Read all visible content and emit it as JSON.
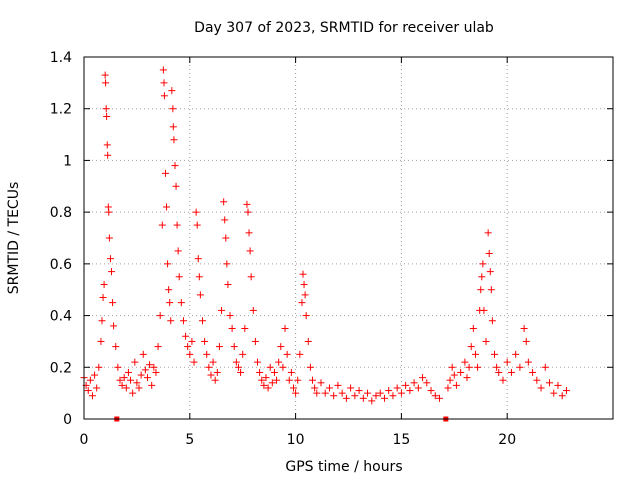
{
  "chart_data": {
    "type": "scatter",
    "title": "Day 307 of 2023, SRMTID for receiver ulab",
    "xlabel": "GPS time / hours",
    "ylabel": "SRMTID / TECUs",
    "xlim": [
      0,
      25
    ],
    "ylim": [
      0,
      1.4
    ],
    "grid": true,
    "marker": "plus",
    "color": "#ff0000",
    "x_ticks": [
      0,
      5,
      10,
      15,
      20
    ],
    "y_ticks": [
      0,
      0.2,
      0.4,
      0.6,
      0.8,
      1,
      1.2,
      1.4
    ],
    "x_tick_labels": [
      "0",
      "5",
      "10",
      "15",
      "20"
    ],
    "y_tick_labels": [
      "0",
      "0.2",
      "0.4",
      "0.6",
      "0.8",
      "1",
      "1.2",
      "1.4"
    ],
    "series": [
      {
        "name": "SRMTID",
        "points": [
          [
            0.0,
            0.16
          ],
          [
            0.1,
            0.13
          ],
          [
            0.2,
            0.11
          ],
          [
            0.3,
            0.15
          ],
          [
            0.4,
            0.09
          ],
          [
            0.5,
            0.17
          ],
          [
            0.6,
            0.12
          ],
          [
            0.7,
            0.2
          ],
          [
            0.8,
            0.3
          ],
          [
            0.85,
            0.38
          ],
          [
            0.9,
            0.47
          ],
          [
            0.95,
            0.52
          ],
          [
            1.0,
            1.33
          ],
          [
            1.02,
            1.3
          ],
          [
            1.05,
            1.2
          ],
          [
            1.07,
            1.17
          ],
          [
            1.1,
            1.06
          ],
          [
            1.12,
            1.02
          ],
          [
            1.15,
            0.82
          ],
          [
            1.17,
            0.8
          ],
          [
            1.2,
            0.7
          ],
          [
            1.25,
            0.62
          ],
          [
            1.3,
            0.57
          ],
          [
            1.35,
            0.45
          ],
          [
            1.4,
            0.36
          ],
          [
            1.5,
            0.28
          ],
          [
            1.6,
            0.2
          ],
          [
            1.7,
            0.15
          ],
          [
            1.8,
            0.13
          ],
          [
            1.9,
            0.16
          ],
          [
            2.0,
            0.12
          ],
          [
            2.1,
            0.18
          ],
          [
            2.2,
            0.15
          ],
          [
            2.3,
            0.1
          ],
          [
            2.4,
            0.22
          ],
          [
            2.5,
            0.14
          ],
          [
            2.6,
            0.12
          ],
          [
            2.7,
            0.17
          ],
          [
            2.8,
            0.25
          ],
          [
            2.9,
            0.19
          ],
          [
            3.0,
            0.16
          ],
          [
            3.1,
            0.21
          ],
          [
            3.2,
            0.13
          ],
          [
            3.3,
            0.2
          ],
          [
            3.4,
            0.18
          ],
          [
            3.5,
            0.28
          ],
          [
            3.6,
            0.4
          ],
          [
            3.7,
            0.75
          ],
          [
            3.75,
            1.35
          ],
          [
            3.78,
            1.3
          ],
          [
            3.8,
            1.25
          ],
          [
            3.85,
            0.95
          ],
          [
            3.9,
            0.82
          ],
          [
            3.95,
            0.6
          ],
          [
            4.0,
            0.5
          ],
          [
            4.05,
            0.45
          ],
          [
            4.1,
            0.38
          ],
          [
            4.15,
            1.27
          ],
          [
            4.2,
            1.2
          ],
          [
            4.22,
            1.13
          ],
          [
            4.25,
            1.08
          ],
          [
            4.3,
            0.98
          ],
          [
            4.35,
            0.9
          ],
          [
            4.4,
            0.75
          ],
          [
            4.45,
            0.65
          ],
          [
            4.5,
            0.55
          ],
          [
            4.6,
            0.45
          ],
          [
            4.7,
            0.38
          ],
          [
            4.8,
            0.32
          ],
          [
            4.9,
            0.28
          ],
          [
            5.0,
            0.25
          ],
          [
            5.1,
            0.3
          ],
          [
            5.2,
            0.22
          ],
          [
            5.3,
            0.8
          ],
          [
            5.35,
            0.75
          ],
          [
            5.4,
            0.62
          ],
          [
            5.45,
            0.55
          ],
          [
            5.5,
            0.48
          ],
          [
            5.6,
            0.38
          ],
          [
            5.7,
            0.3
          ],
          [
            5.8,
            0.25
          ],
          [
            5.9,
            0.2
          ],
          [
            6.0,
            0.17
          ],
          [
            6.1,
            0.22
          ],
          [
            6.2,
            0.15
          ],
          [
            6.3,
            0.18
          ],
          [
            6.4,
            0.28
          ],
          [
            6.5,
            0.42
          ],
          [
            6.6,
            0.84
          ],
          [
            6.65,
            0.77
          ],
          [
            6.7,
            0.7
          ],
          [
            6.75,
            0.6
          ],
          [
            6.8,
            0.52
          ],
          [
            6.9,
            0.4
          ],
          [
            7.0,
            0.35
          ],
          [
            7.1,
            0.28
          ],
          [
            7.2,
            0.22
          ],
          [
            7.3,
            0.2
          ],
          [
            7.4,
            0.18
          ],
          [
            7.5,
            0.25
          ],
          [
            7.6,
            0.35
          ],
          [
            7.7,
            0.83
          ],
          [
            7.75,
            0.8
          ],
          [
            7.8,
            0.72
          ],
          [
            7.85,
            0.65
          ],
          [
            7.9,
            0.55
          ],
          [
            8.0,
            0.42
          ],
          [
            8.1,
            0.3
          ],
          [
            8.2,
            0.22
          ],
          [
            8.3,
            0.18
          ],
          [
            8.4,
            0.15
          ],
          [
            8.5,
            0.13
          ],
          [
            8.6,
            0.16
          ],
          [
            8.7,
            0.12
          ],
          [
            8.8,
            0.2
          ],
          [
            8.9,
            0.14
          ],
          [
            9.0,
            0.18
          ],
          [
            9.1,
            0.15
          ],
          [
            9.2,
            0.22
          ],
          [
            9.3,
            0.28
          ],
          [
            9.4,
            0.2
          ],
          [
            9.5,
            0.35
          ],
          [
            9.6,
            0.25
          ],
          [
            9.7,
            0.15
          ],
          [
            9.8,
            0.18
          ],
          [
            9.9,
            0.12
          ],
          [
            10.0,
            0.1
          ],
          [
            10.1,
            0.15
          ],
          [
            10.2,
            0.25
          ],
          [
            10.3,
            0.45
          ],
          [
            10.35,
            0.56
          ],
          [
            10.4,
            0.52
          ],
          [
            10.45,
            0.48
          ],
          [
            10.5,
            0.4
          ],
          [
            10.6,
            0.3
          ],
          [
            10.7,
            0.2
          ],
          [
            10.8,
            0.15
          ],
          [
            10.9,
            0.12
          ],
          [
            11.0,
            0.1
          ],
          [
            11.2,
            0.14
          ],
          [
            11.4,
            0.1
          ],
          [
            11.6,
            0.12
          ],
          [
            11.8,
            0.09
          ],
          [
            12.0,
            0.13
          ],
          [
            12.2,
            0.1
          ],
          [
            12.4,
            0.08
          ],
          [
            12.6,
            0.12
          ],
          [
            12.8,
            0.09
          ],
          [
            13.0,
            0.11
          ],
          [
            13.2,
            0.08
          ],
          [
            13.4,
            0.1
          ],
          [
            13.6,
            0.07
          ],
          [
            13.8,
            0.09
          ],
          [
            14.0,
            0.1
          ],
          [
            14.2,
            0.08
          ],
          [
            14.4,
            0.11
          ],
          [
            14.6,
            0.09
          ],
          [
            14.8,
            0.12
          ],
          [
            15.0,
            0.1
          ],
          [
            15.2,
            0.13
          ],
          [
            15.4,
            0.11
          ],
          [
            15.6,
            0.14
          ],
          [
            15.8,
            0.12
          ],
          [
            16.0,
            0.16
          ],
          [
            16.2,
            0.14
          ],
          [
            16.4,
            0.11
          ],
          [
            16.6,
            0.09
          ],
          [
            16.8,
            0.08
          ],
          [
            17.2,
            0.12
          ],
          [
            17.3,
            0.15
          ],
          [
            17.4,
            0.2
          ],
          [
            17.5,
            0.17
          ],
          [
            17.6,
            0.13
          ],
          [
            17.8,
            0.18
          ],
          [
            18.0,
            0.22
          ],
          [
            18.1,
            0.16
          ],
          [
            18.2,
            0.2
          ],
          [
            18.3,
            0.28
          ],
          [
            18.4,
            0.35
          ],
          [
            18.5,
            0.25
          ],
          [
            18.6,
            0.2
          ],
          [
            18.7,
            0.42
          ],
          [
            18.75,
            0.5
          ],
          [
            18.8,
            0.55
          ],
          [
            18.85,
            0.6
          ],
          [
            18.9,
            0.42
          ],
          [
            19.0,
            0.3
          ],
          [
            19.1,
            0.72
          ],
          [
            19.15,
            0.64
          ],
          [
            19.2,
            0.57
          ],
          [
            19.25,
            0.5
          ],
          [
            19.3,
            0.38
          ],
          [
            19.4,
            0.25
          ],
          [
            19.5,
            0.2
          ],
          [
            19.6,
            0.18
          ],
          [
            19.8,
            0.15
          ],
          [
            20.0,
            0.22
          ],
          [
            20.2,
            0.18
          ],
          [
            20.4,
            0.25
          ],
          [
            20.6,
            0.2
          ],
          [
            20.8,
            0.35
          ],
          [
            20.9,
            0.3
          ],
          [
            21.0,
            0.22
          ],
          [
            21.2,
            0.18
          ],
          [
            21.4,
            0.15
          ],
          [
            21.6,
            0.12
          ],
          [
            21.8,
            0.2
          ],
          [
            22.0,
            0.14
          ],
          [
            22.2,
            0.1
          ],
          [
            22.4,
            0.13
          ],
          [
            22.6,
            0.09
          ],
          [
            22.8,
            0.11
          ]
        ]
      }
    ],
    "data_gaps_marked_at_zero": [
      1.55,
      17.1
    ]
  }
}
